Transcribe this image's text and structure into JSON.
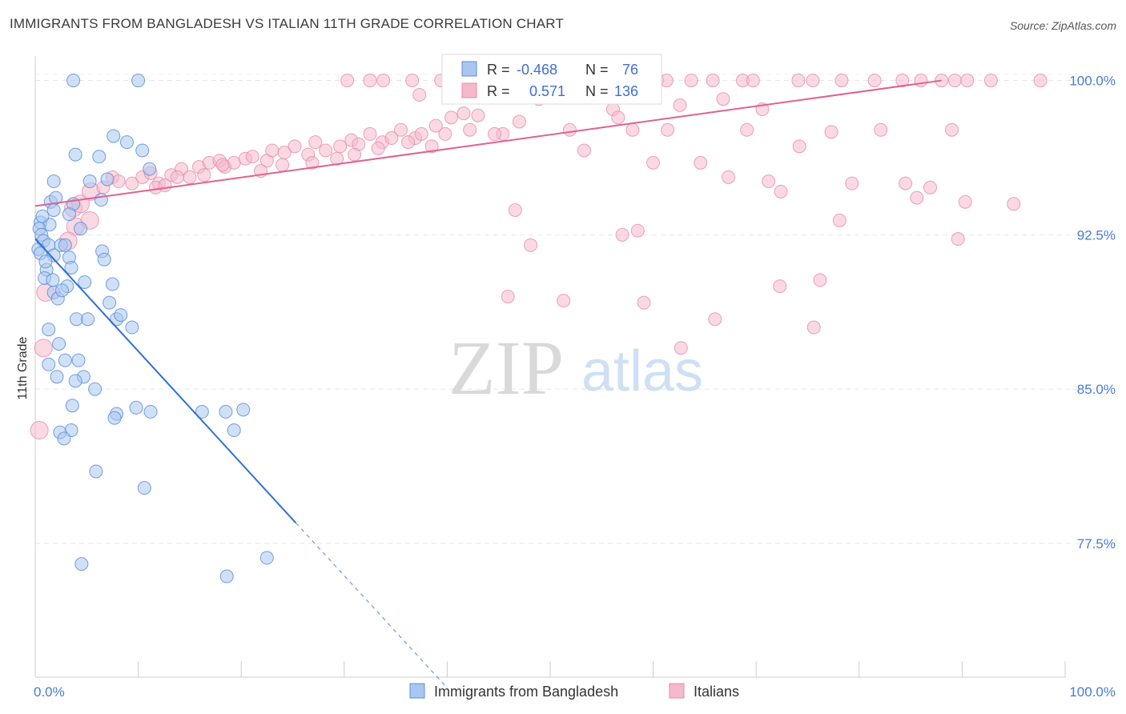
{
  "header": {
    "title": "IMMIGRANTS FROM BANGLADESH VS ITALIAN 11TH GRADE CORRELATION CHART",
    "source": "Source: ZipAtlas.com"
  },
  "watermark": {
    "zip": "ZIP",
    "atlas": "atlas"
  },
  "colors": {
    "blue_fill": "#a9c6f0",
    "blue_stroke": "#5b8fdc",
    "blue_line": "#2f6fd6",
    "pink_fill": "#f6b9cc",
    "pink_stroke": "#e889aa",
    "pink_line": "#e0628f",
    "tick_text": "#4a7bd0"
  },
  "legend_box": {
    "rows": [
      {
        "r_label": "R =",
        "r_value": "-0.468",
        "n_label": "N =",
        "n_value": "76"
      },
      {
        "r_label": "R =",
        "r_value": "0.571",
        "n_label": "N =",
        "n_value": "136"
      }
    ]
  },
  "chart_data": {
    "type": "scatter",
    "title": "IMMIGRANTS FROM BANGLADESH VS ITALIAN 11TH GRADE CORRELATION CHART",
    "xlabel": "",
    "ylabel": "11th Grade",
    "xlim": [
      0,
      100
    ],
    "ylim": [
      71.0,
      101.5
    ],
    "x_tick_labels": [
      "0.0%",
      "100.0%"
    ],
    "y_ticks": [
      100.0,
      92.5,
      85.0,
      77.5
    ],
    "y_tick_labels": [
      "100.0%",
      "92.5%",
      "85.0%",
      "77.5%"
    ],
    "grid": true,
    "legend_position": "bottom",
    "series": [
      {
        "name": "Immigrants from Bangladesh",
        "color": "#a9c6f0",
        "r": -0.468,
        "n": 76,
        "trend": {
          "x0": 0.0,
          "y0": 92.3,
          "x1": 25.3,
          "y1": 78.5,
          "dash_to_x": 40.0
        },
        "points": [
          [
            3.7,
            100
          ],
          [
            10,
            100
          ],
          [
            7.6,
            97.3
          ],
          [
            3.9,
            96.4
          ],
          [
            6.2,
            96.3
          ],
          [
            8.9,
            97
          ],
          [
            10.4,
            96.6
          ],
          [
            11.1,
            95.7
          ],
          [
            7.0,
            95.2
          ],
          [
            1.8,
            95.1
          ],
          [
            5.3,
            95.1
          ],
          [
            6.4,
            94.2
          ],
          [
            1.5,
            94.1
          ],
          [
            3.7,
            94.0
          ],
          [
            1.8,
            93.7
          ],
          [
            3.3,
            93.5
          ],
          [
            0.5,
            93.1
          ],
          [
            1.4,
            93.0
          ],
          [
            0.4,
            92.8
          ],
          [
            0.6,
            92.5
          ],
          [
            0.8,
            92.2
          ],
          [
            1.3,
            92.0
          ],
          [
            2.5,
            92.0
          ],
          [
            0.3,
            91.8
          ],
          [
            0.5,
            91.6
          ],
          [
            1.8,
            91.5
          ],
          [
            3.3,
            91.4
          ],
          [
            6.5,
            91.7
          ],
          [
            6.7,
            91.3
          ],
          [
            1.1,
            90.8
          ],
          [
            3.5,
            90.9
          ],
          [
            0.9,
            90.4
          ],
          [
            1.7,
            90.3
          ],
          [
            4.8,
            90.2
          ],
          [
            3.1,
            90.0
          ],
          [
            7.5,
            90.1
          ],
          [
            1.8,
            89.7
          ],
          [
            2.2,
            89.4
          ],
          [
            7.2,
            89.2
          ],
          [
            4.0,
            88.4
          ],
          [
            5.1,
            88.4
          ],
          [
            7.9,
            88.4
          ],
          [
            9.4,
            88.0
          ],
          [
            1.3,
            87.9
          ],
          [
            2.3,
            87.2
          ],
          [
            4.2,
            86.4
          ],
          [
            2.9,
            86.4
          ],
          [
            1.3,
            86.2
          ],
          [
            2.1,
            85.6
          ],
          [
            4.7,
            85.6
          ],
          [
            3.9,
            85.4
          ],
          [
            5.8,
            85.0
          ],
          [
            3.6,
            84.2
          ],
          [
            9.8,
            84.1
          ],
          [
            7.9,
            83.8
          ],
          [
            11.2,
            83.9
          ],
          [
            7.7,
            83.6
          ],
          [
            16.2,
            83.9
          ],
          [
            18.5,
            83.9
          ],
          [
            19.3,
            83.0
          ],
          [
            20.2,
            84.0
          ],
          [
            3.5,
            83.0
          ],
          [
            2.4,
            82.9
          ],
          [
            2.8,
            82.6
          ],
          [
            5.9,
            81.0
          ],
          [
            10.6,
            80.2
          ],
          [
            4.5,
            76.5
          ],
          [
            22.5,
            76.8
          ],
          [
            18.6,
            75.9
          ],
          [
            2.9,
            92.0
          ],
          [
            4.4,
            92.8
          ],
          [
            2.0,
            94.3
          ],
          [
            0.7,
            93.4
          ],
          [
            1.0,
            91.2
          ],
          [
            2.6,
            89.8
          ],
          [
            8.3,
            88.6
          ]
        ]
      },
      {
        "name": "Italians",
        "color": "#f6b9cc",
        "r": 0.571,
        "n": 136,
        "trend": {
          "x0": 0.0,
          "y0": 93.9,
          "x1": 88.0,
          "y1": 100.0
        },
        "points": [
          [
            30.3,
            100
          ],
          [
            32.5,
            100
          ],
          [
            33.8,
            100
          ],
          [
            36.6,
            100
          ],
          [
            39.4,
            100
          ],
          [
            40.9,
            100
          ],
          [
            43.1,
            100
          ],
          [
            45.0,
            100
          ],
          [
            46.6,
            100
          ],
          [
            48.8,
            100
          ],
          [
            51.4,
            100
          ],
          [
            54.8,
            100
          ],
          [
            56.6,
            100
          ],
          [
            60.4,
            100
          ],
          [
            61.3,
            100
          ],
          [
            63.7,
            100
          ],
          [
            65.8,
            100
          ],
          [
            68.7,
            100
          ],
          [
            69.7,
            100
          ],
          [
            74.1,
            100
          ],
          [
            75.5,
            100
          ],
          [
            78.3,
            100
          ],
          [
            81.5,
            100
          ],
          [
            84.2,
            100
          ],
          [
            86.0,
            100
          ],
          [
            88.0,
            100
          ],
          [
            89.3,
            100
          ],
          [
            90.5,
            100
          ],
          [
            92.8,
            100
          ],
          [
            97.6,
            100
          ],
          [
            37.3,
            99.3
          ],
          [
            45.3,
            99.3
          ],
          [
            48.9,
            99.1
          ],
          [
            56.1,
            98.6
          ],
          [
            62.6,
            98.8
          ],
          [
            66.8,
            99.1
          ],
          [
            70.6,
            98.6
          ],
          [
            56.6,
            98.2
          ],
          [
            42.2,
            97.6
          ],
          [
            45.4,
            97.4
          ],
          [
            51.9,
            97.6
          ],
          [
            58.0,
            97.6
          ],
          [
            61.4,
            97.6
          ],
          [
            69.1,
            97.6
          ],
          [
            77.3,
            97.5
          ],
          [
            82.1,
            97.6
          ],
          [
            89.0,
            97.6
          ],
          [
            74.2,
            96.8
          ],
          [
            53.3,
            96.6
          ],
          [
            60.0,
            96.0
          ],
          [
            64.6,
            96.0
          ],
          [
            67.3,
            95.3
          ],
          [
            71.2,
            95.1
          ],
          [
            79.3,
            95.0
          ],
          [
            84.5,
            95.0
          ],
          [
            86.9,
            94.8
          ],
          [
            72.4,
            94.6
          ],
          [
            85.6,
            94.3
          ],
          [
            90.3,
            94.1
          ],
          [
            95.0,
            94.0
          ],
          [
            57.0,
            92.5
          ],
          [
            58.5,
            92.7
          ],
          [
            48.1,
            92.0
          ],
          [
            78.1,
            93.2
          ],
          [
            89.6,
            92.3
          ],
          [
            72.3,
            90.0
          ],
          [
            76.2,
            90.3
          ],
          [
            45.9,
            89.5
          ],
          [
            51.3,
            89.3
          ],
          [
            59.1,
            89.2
          ],
          [
            66.0,
            88.4
          ],
          [
            75.6,
            88.0
          ],
          [
            62.7,
            87.0
          ],
          [
            46.6,
            93.7
          ],
          [
            3.7,
            93.8
          ],
          [
            4.4,
            94.0
          ],
          [
            5.4,
            94.6
          ],
          [
            6.6,
            94.8
          ],
          [
            7.5,
            95.3
          ],
          [
            8.1,
            95.1
          ],
          [
            9.4,
            95.0
          ],
          [
            10.4,
            95.3
          ],
          [
            11.2,
            95.5
          ],
          [
            12.0,
            95.0
          ],
          [
            13.2,
            95.4
          ],
          [
            14.2,
            95.7
          ],
          [
            15.0,
            95.3
          ],
          [
            15.9,
            95.8
          ],
          [
            16.9,
            96.0
          ],
          [
            17.9,
            96.1
          ],
          [
            18.4,
            95.8
          ],
          [
            19.3,
            96.0
          ],
          [
            20.4,
            96.2
          ],
          [
            21.1,
            96.3
          ],
          [
            22.5,
            96.1
          ],
          [
            23.0,
            96.6
          ],
          [
            24.2,
            96.5
          ],
          [
            25.2,
            96.8
          ],
          [
            26.5,
            96.4
          ],
          [
            27.2,
            97.0
          ],
          [
            28.2,
            96.6
          ],
          [
            29.6,
            96.8
          ],
          [
            30.7,
            97.1
          ],
          [
            31.4,
            96.9
          ],
          [
            32.5,
            97.4
          ],
          [
            33.7,
            97.0
          ],
          [
            34.6,
            97.2
          ],
          [
            35.5,
            97.6
          ],
          [
            36.9,
            97.2
          ],
          [
            37.5,
            97.4
          ],
          [
            38.9,
            97.8
          ],
          [
            39.8,
            97.4
          ],
          [
            40.4,
            98.2
          ],
          [
            41.6,
            98.4
          ],
          [
            43.0,
            98.3
          ],
          [
            11.7,
            94.8
          ],
          [
            12.6,
            94.9
          ],
          [
            13.8,
            95.3
          ],
          [
            16.4,
            95.4
          ],
          [
            18.2,
            95.9
          ],
          [
            21.9,
            95.6
          ],
          [
            24.0,
            95.9
          ],
          [
            26.9,
            96.0
          ],
          [
            29.3,
            96.2
          ],
          [
            31.0,
            96.4
          ],
          [
            33.3,
            96.7
          ],
          [
            36.2,
            97.0
          ],
          [
            38.5,
            96.8
          ],
          [
            44.6,
            97.4
          ],
          [
            47.0,
            98.0
          ],
          [
            3.9,
            92.9
          ],
          [
            5.3,
            93.2
          ],
          [
            3.2,
            92.2
          ],
          [
            0.8,
            87.0
          ],
          [
            1.0,
            89.7
          ],
          [
            0.4,
            83.0
          ]
        ]
      }
    ]
  }
}
